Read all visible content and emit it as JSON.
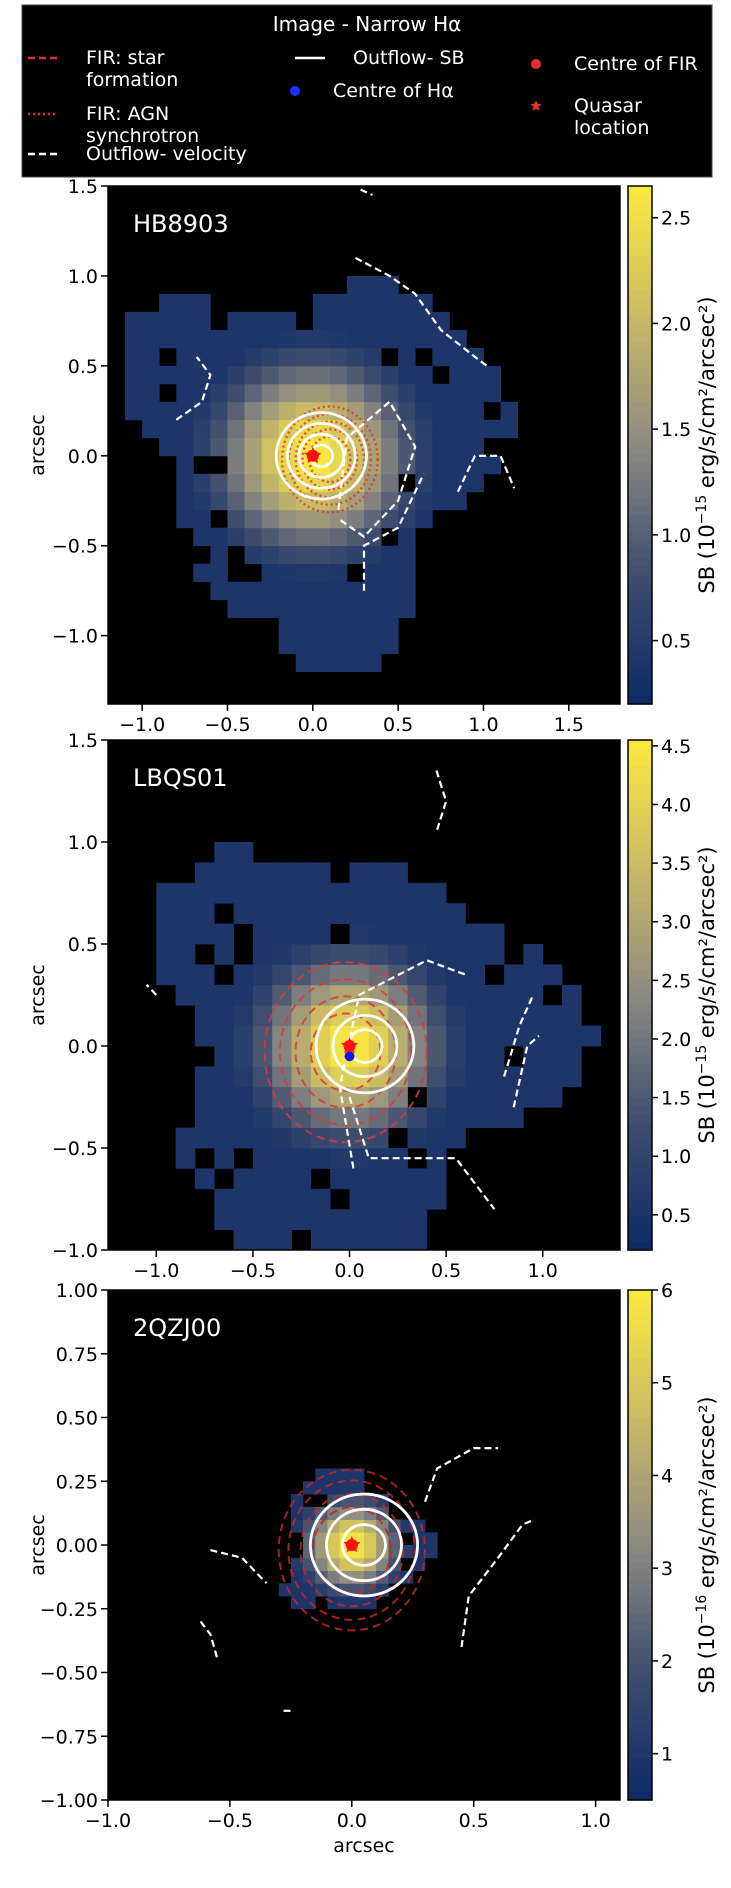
{
  "legend": {
    "title": "Image - Narrow Hα",
    "entries": [
      {
        "lines": [
          "FIR: star",
          "formation"
        ],
        "style": "red-dashed"
      },
      {
        "lines": [
          "FIR: AGN",
          "synchrotron"
        ],
        "style": "red-dotted"
      },
      {
        "lines": [
          "Outflow- velocity"
        ],
        "style": "white-dashed"
      },
      {
        "lines": [
          "Outflow- SB"
        ],
        "style": "white-solid"
      },
      {
        "lines": [
          "Centre of Hα"
        ],
        "style": "blue-dot"
      },
      {
        "lines": [
          "Centre of FIR"
        ],
        "style": "red-dot"
      },
      {
        "lines": [
          "Quasar",
          "location"
        ],
        "style": "red-star"
      }
    ]
  },
  "colors": {
    "cmap_low": "#0d2a66",
    "cmap_mid": "#8c8a82",
    "cmap_high": "#fce93f",
    "fir": "#d93a3a",
    "quasar": "#ff1010",
    "ha_centre": "#1010ff"
  },
  "chart_data": [
    {
      "type": "heatmap",
      "name": "HB8903",
      "xlim": [
        -1.2,
        1.8
      ],
      "ylim": [
        -1.38,
        1.5
      ],
      "xticks": [
        -1.0,
        -0.5,
        0.0,
        0.5,
        1.0,
        1.5
      ],
      "xtick_labels": [
        "−1.0",
        "−0.5",
        "0.0",
        "0.5",
        "1.0",
        "1.5"
      ],
      "yticks": [
        -1.0,
        -0.5,
        0.0,
        0.5,
        1.0,
        1.5
      ],
      "ytick_labels": [
        "−1.0",
        "−0.5",
        "0.0",
        "0.5",
        "1.0",
        "1.5"
      ],
      "ylabel": "arcsec",
      "xlabel": "",
      "cbar": {
        "min": 0.2,
        "max": 2.65,
        "ticks": [
          0.5,
          1.0,
          1.5,
          2.0,
          2.5
        ],
        "tick_labels": [
          "0.5",
          "1.0",
          "1.5",
          "2.0",
          "2.5"
        ],
        "label_pre": "SB (10",
        "label_exp": "−15",
        "label_post": " erg/s/cm²/arcsec²)"
      },
      "peak": 2.65,
      "center": [
        0.0,
        0.0
      ],
      "sigma": [
        0.38,
        0.35
      ],
      "floor_r": 1.02,
      "pixel": 0.1,
      "fir_style": "dotted",
      "fir_levels": [
        0.12,
        0.16,
        0.2,
        0.24,
        0.28
      ],
      "fir_center": [
        0.1,
        -0.02
      ],
      "outflow_sb_levels": [
        0.06,
        0.12,
        0.18,
        0.24
      ],
      "outflow_sb_center": [
        0.05,
        0.0
      ],
      "velocity_contours": [
        [
          [
            -0.8,
            0.2
          ],
          [
            -0.65,
            0.3
          ],
          [
            -0.6,
            0.45
          ],
          [
            -0.68,
            0.55
          ]
        ],
        [
          [
            0.15,
            -0.3
          ],
          [
            0.2,
            0.1
          ],
          [
            0.45,
            0.3
          ],
          [
            0.6,
            0.05
          ],
          [
            0.5,
            -0.25
          ],
          [
            0.3,
            -0.45
          ],
          [
            0.15,
            -0.35
          ]
        ],
        [
          [
            0.3,
            -0.75
          ],
          [
            0.3,
            -0.5
          ],
          [
            0.5,
            -0.4
          ],
          [
            0.65,
            -0.1
          ]
        ],
        [
          [
            0.25,
            1.1
          ],
          [
            0.45,
            1.0
          ],
          [
            0.6,
            0.9
          ],
          [
            0.75,
            0.7
          ],
          [
            0.95,
            0.55
          ],
          [
            1.02,
            0.5
          ]
        ],
        [
          [
            0.85,
            -0.2
          ],
          [
            0.95,
            0.0
          ],
          [
            1.1,
            0.0
          ],
          [
            1.18,
            -0.18
          ]
        ],
        [
          [
            0.28,
            1.48
          ],
          [
            0.35,
            1.45
          ]
        ]
      ],
      "ha_centre": [
        0.0,
        0.0
      ],
      "fir_centre": [
        0.0,
        0.0
      ],
      "quasar": [
        0.0,
        0.0
      ]
    },
    {
      "type": "heatmap",
      "name": "LBQS01",
      "xlim": [
        -1.25,
        1.4
      ],
      "ylim": [
        -1.0,
        1.5
      ],
      "xticks": [
        -1.0,
        -0.5,
        0.0,
        0.5,
        1.0
      ],
      "xtick_labels": [
        "−1.0",
        "−0.5",
        "0.0",
        "0.5",
        "1.0"
      ],
      "yticks": [
        -1.0,
        -0.5,
        0.0,
        0.5,
        1.0,
        1.5
      ],
      "ytick_labels": [
        "−1.0",
        "−0.5",
        "0.0",
        "0.5",
        "1.0",
        "1.5"
      ],
      "ylabel": "arcsec",
      "xlabel": "",
      "cbar": {
        "min": 0.2,
        "max": 4.55,
        "ticks": [
          0.5,
          1.0,
          1.5,
          2.0,
          2.5,
          3.0,
          3.5,
          4.0,
          4.5
        ],
        "tick_labels": [
          "0.5",
          "1.0",
          "1.5",
          "2.0",
          "2.5",
          "3.0",
          "3.5",
          "4.0",
          "4.5"
        ],
        "label_pre": "SB (10",
        "label_exp": "−15",
        "label_post": " erg/s/cm²/arcsec²)"
      },
      "peak": 4.55,
      "center": [
        0.0,
        0.0
      ],
      "sigma": [
        0.3,
        0.28
      ],
      "floor_r": 1.0,
      "pixel": 0.1,
      "fir_style": "dashed",
      "fir_levels": [
        0.18,
        0.26,
        0.34,
        0.42
      ],
      "fir_center": [
        -0.02,
        -0.03
      ],
      "outflow_sb_levels": [
        0.08,
        0.15,
        0.23
      ],
      "outflow_sb_center": [
        0.08,
        0.0
      ],
      "velocity_contours": [
        [
          [
            0.02,
            -0.6
          ],
          [
            -0.05,
            -0.2
          ],
          [
            0.05,
            0.25
          ],
          [
            0.4,
            0.42
          ],
          [
            0.6,
            0.35
          ]
        ],
        [
          [
            0.0,
            -0.25
          ],
          [
            0.1,
            -0.55
          ],
          [
            0.55,
            -0.55
          ],
          [
            0.75,
            -0.8
          ]
        ],
        [
          [
            0.8,
            -0.15
          ],
          [
            0.88,
            0.1
          ],
          [
            0.95,
            0.25
          ]
        ],
        [
          [
            0.85,
            -0.3
          ],
          [
            0.92,
            0.0
          ],
          [
            0.98,
            0.05
          ]
        ],
        [
          [
            0.45,
            1.35
          ],
          [
            0.5,
            1.2
          ],
          [
            0.45,
            1.05
          ]
        ],
        [
          [
            -1.0,
            0.25
          ],
          [
            -1.05,
            0.3
          ]
        ]
      ],
      "ha_centre": [
        0.0,
        -0.05
      ],
      "fir_centre": [
        0.0,
        0.0
      ],
      "quasar": [
        0.0,
        0.0
      ]
    },
    {
      "type": "heatmap",
      "name": "2QZJ00",
      "xlim": [
        -1.0,
        1.1
      ],
      "ylim": [
        -1.0,
        1.0
      ],
      "xticks": [
        -1.0,
        -0.5,
        0.0,
        0.5,
        1.0
      ],
      "xtick_labels": [
        "−1.0",
        "−0.5",
        "0.0",
        "0.5",
        "1.0"
      ],
      "yticks": [
        -1.0,
        -0.75,
        -0.5,
        -0.25,
        0.0,
        0.25,
        0.5,
        0.75,
        1.0
      ],
      "ytick_labels": [
        "−1.00",
        "−0.75",
        "−0.50",
        "−0.25",
        "0.00",
        "0.25",
        "0.50",
        "0.75",
        "1.00"
      ],
      "ylabel": "arcsec",
      "xlabel": "arcsec",
      "cbar": {
        "min": 0.5,
        "max": 6.0,
        "ticks": [
          1,
          2,
          3,
          4,
          5,
          6
        ],
        "tick_labels": [
          "1",
          "2",
          "3",
          "4",
          "5",
          "6"
        ],
        "label_pre": "SB (10",
        "label_exp": "−16",
        "label_post": " erg/s/cm²/arcsec²)"
      },
      "peak": 6.0,
      "center": [
        0.0,
        0.0
      ],
      "sigma": [
        0.13,
        0.12
      ],
      "floor_r": 0.28,
      "pixel": 0.05,
      "fir_style": "dashed",
      "fir_levels": [
        0.16,
        0.21,
        0.26,
        0.3
      ],
      "fir_center": [
        0.0,
        -0.02
      ],
      "outflow_sb_levels": [
        0.08,
        0.14,
        0.2
      ],
      "outflow_sb_center": [
        0.05,
        0.0
      ],
      "velocity_contours": [
        [
          [
            0.3,
            0.17
          ],
          [
            0.35,
            0.3
          ],
          [
            0.5,
            0.38
          ],
          [
            0.6,
            0.38
          ]
        ],
        [
          [
            0.45,
            -0.4
          ],
          [
            0.48,
            -0.2
          ],
          [
            0.6,
            -0.05
          ],
          [
            0.7,
            0.08
          ],
          [
            0.75,
            0.1
          ]
        ],
        [
          [
            -0.58,
            -0.02
          ],
          [
            -0.45,
            -0.05
          ],
          [
            -0.35,
            -0.15
          ]
        ],
        [
          [
            -0.62,
            -0.3
          ],
          [
            -0.58,
            -0.35
          ],
          [
            -0.55,
            -0.45
          ]
        ],
        [
          [
            -0.28,
            -0.65
          ],
          [
            -0.25,
            -0.65
          ]
        ]
      ],
      "ha_centre": [
        0.0,
        0.0
      ],
      "fir_centre": [
        0.0,
        0.0
      ],
      "quasar": [
        0.0,
        0.0
      ]
    }
  ]
}
